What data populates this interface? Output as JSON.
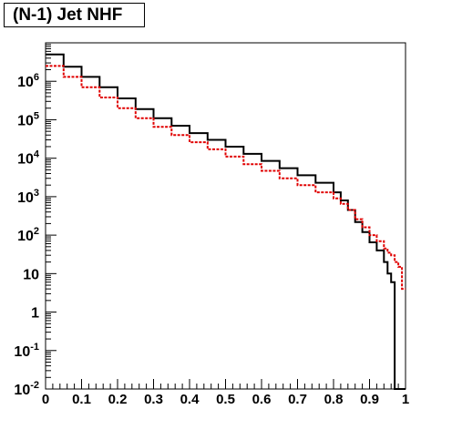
{
  "chart_data": {
    "type": "line",
    "title": "(N-1) Jet NHF",
    "xlabel": "",
    "ylabel": "",
    "xlim": [
      0,
      1
    ],
    "ylim": [
      0.01,
      10000000
    ],
    "yscale": "log",
    "grid": false,
    "legend": "none",
    "x_ticks": [
      {
        "value": 0,
        "label": "0"
      },
      {
        "value": 0.1,
        "label": "0.1"
      },
      {
        "value": 0.2,
        "label": "0.2"
      },
      {
        "value": 0.3,
        "label": "0.3"
      },
      {
        "value": 0.4,
        "label": "0.4"
      },
      {
        "value": 0.5,
        "label": "0.5"
      },
      {
        "value": 0.6,
        "label": "0.6"
      },
      {
        "value": 0.7,
        "label": "0.7"
      },
      {
        "value": 0.8,
        "label": "0.8"
      },
      {
        "value": 0.9,
        "label": "0.9"
      },
      {
        "value": 1,
        "label": "1"
      }
    ],
    "y_ticks": [
      {
        "value": 0.01,
        "base": "10",
        "exp": "-2"
      },
      {
        "value": 0.1,
        "base": "10",
        "exp": "-1"
      },
      {
        "value": 1,
        "base": "1",
        "exp": ""
      },
      {
        "value": 10,
        "base": "10",
        "exp": ""
      },
      {
        "value": 100,
        "base": "10",
        "exp": "2"
      },
      {
        "value": 1000,
        "base": "10",
        "exp": "3"
      },
      {
        "value": 10000,
        "base": "10",
        "exp": "4"
      },
      {
        "value": 100000,
        "base": "10",
        "exp": "5"
      },
      {
        "value": 1000000,
        "base": "10",
        "exp": "6"
      }
    ],
    "series": [
      {
        "color": "#000000",
        "style": "solid-step",
        "x": [
          0.0,
          0.05,
          0.1,
          0.15,
          0.2,
          0.25,
          0.3,
          0.35,
          0.4,
          0.45,
          0.5,
          0.55,
          0.6,
          0.65,
          0.7,
          0.75,
          0.8,
          0.82,
          0.84,
          0.86,
          0.88,
          0.9,
          0.92,
          0.94,
          0.95,
          0.96,
          0.97,
          1.0
        ],
        "y": [
          5000000,
          2400000,
          1300000,
          700000,
          360000,
          190000,
          110000,
          70000,
          45000,
          30000,
          20000,
          13000,
          8500,
          5500,
          3600,
          2300,
          1300,
          800,
          450,
          220,
          120,
          65,
          40,
          20,
          10,
          6,
          0.01,
          0.01
        ]
      },
      {
        "color": "#e00000",
        "style": "dashed-step",
        "x": [
          0.0,
          0.05,
          0.1,
          0.15,
          0.2,
          0.25,
          0.3,
          0.35,
          0.4,
          0.45,
          0.5,
          0.55,
          0.6,
          0.65,
          0.7,
          0.75,
          0.8,
          0.82,
          0.84,
          0.86,
          0.88,
          0.9,
          0.92,
          0.94,
          0.95,
          0.96,
          0.97,
          0.98,
          0.99,
          1.0
        ],
        "y": [
          2500000,
          1300000,
          700000,
          380000,
          200000,
          110000,
          65000,
          40000,
          26000,
          17000,
          11000,
          7000,
          4700,
          3000,
          2000,
          1300,
          900,
          650,
          450,
          260,
          160,
          100,
          70,
          45,
          35,
          30,
          20,
          15,
          4,
          4
        ]
      }
    ]
  }
}
